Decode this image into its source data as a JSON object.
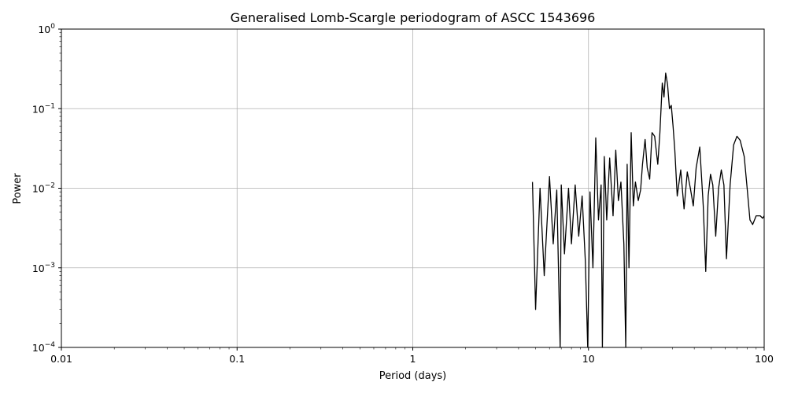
{
  "chart_data": {
    "type": "line",
    "title": "Generalised Lomb-Scargle periodogram of ASCC 1543696",
    "xlabel": "Period (days)",
    "ylabel": "Power",
    "xscale": "log",
    "yscale": "log",
    "xlim": [
      0.01,
      100
    ],
    "ylim": [
      0.0001,
      1
    ],
    "grid": true,
    "x_ticks": [
      {
        "value": 0.01,
        "label": "0.01"
      },
      {
        "value": 0.1,
        "label": "0.1"
      },
      {
        "value": 1,
        "label": "1"
      },
      {
        "value": 10,
        "label": "10"
      },
      {
        "value": 100,
        "label": "100"
      }
    ],
    "y_ticks": [
      {
        "value": 0.0001,
        "base": "10",
        "exp": "−4"
      },
      {
        "value": 0.001,
        "base": "10",
        "exp": "−3"
      },
      {
        "value": 0.01,
        "base": "10",
        "exp": "−2"
      },
      {
        "value": 0.1,
        "base": "10",
        "exp": "−1"
      },
      {
        "value": 1,
        "base": "10",
        "exp": "0"
      }
    ],
    "line_color": "#000000",
    "series": [
      {
        "x": [
          4.8,
          5.0,
          5.3,
          5.6,
          6.0,
          6.3,
          6.6,
          6.9,
          7.0,
          7.3,
          7.7,
          8.0,
          8.4,
          8.8,
          9.2,
          9.6,
          9.9,
          10.2,
          10.6,
          11.0,
          11.4,
          11.8,
          12.0,
          12.3,
          12.7,
          13.2,
          13.8,
          14.3,
          14.8,
          15.3,
          15.9,
          16.3,
          16.6,
          17.0,
          17.5,
          18.0,
          18.5,
          19.2,
          19.8,
          20.3,
          21.0,
          21.6,
          22.3,
          23.0,
          23.8,
          24.8,
          25.5,
          26.3,
          26.9,
          27.5,
          28.2,
          28.9,
          29.6,
          30.3,
          31.0,
          32.0,
          33.5,
          35.0,
          36.5,
          38.0,
          39.5,
          41.0,
          43.0,
          45.0,
          46.5,
          48.0,
          49.5,
          51.0,
          53.0,
          55.0,
          57.0,
          59.0,
          61.0,
          64.0,
          67.0,
          70.0,
          73.0,
          77.0,
          80.0,
          83.0,
          86.0,
          90.0,
          95.0,
          98.0,
          100.0
        ],
        "y": [
          0.012,
          0.0003,
          0.01,
          0.0008,
          0.014,
          0.002,
          0.0095,
          0.0001,
          0.011,
          0.0015,
          0.01,
          0.002,
          0.011,
          0.0025,
          0.008,
          0.0012,
          0.0001,
          0.009,
          0.001,
          0.043,
          0.004,
          0.011,
          0.0001,
          0.025,
          0.004,
          0.024,
          0.0045,
          0.03,
          0.007,
          0.012,
          0.002,
          0.0001,
          0.02,
          0.001,
          0.05,
          0.006,
          0.012,
          0.007,
          0.0095,
          0.02,
          0.041,
          0.018,
          0.013,
          0.05,
          0.045,
          0.02,
          0.05,
          0.21,
          0.14,
          0.28,
          0.2,
          0.1,
          0.11,
          0.06,
          0.03,
          0.008,
          0.017,
          0.0055,
          0.016,
          0.01,
          0.006,
          0.018,
          0.033,
          0.006,
          0.0009,
          0.008,
          0.015,
          0.011,
          0.0025,
          0.01,
          0.017,
          0.011,
          0.0013,
          0.011,
          0.035,
          0.045,
          0.04,
          0.025,
          0.01,
          0.004,
          0.0035,
          0.0045,
          0.0045,
          0.0042,
          0.0045
        ]
      }
    ]
  }
}
